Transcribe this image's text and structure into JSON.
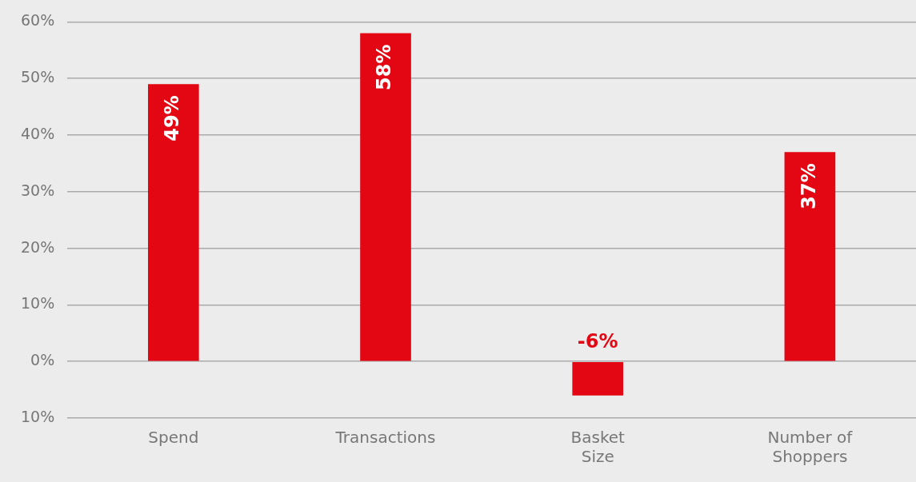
{
  "chart_data": {
    "type": "bar",
    "categories": [
      "Spend",
      "Transactions",
      "Basket Size",
      "Number of Shoppers"
    ],
    "values": [
      49,
      58,
      -6,
      37
    ],
    "color": "#e30613",
    "value_labels": [
      "49%",
      "58%",
      "-6%",
      "37%"
    ],
    "ylim": [
      -10,
      60
    ],
    "yticks": [
      {
        "value": -10,
        "label": "10%"
      },
      {
        "value": 0,
        "label": "0%"
      },
      {
        "value": 10,
        "label": "10%"
      },
      {
        "value": 20,
        "label": "20%"
      },
      {
        "value": 30,
        "label": "30%"
      },
      {
        "value": 40,
        "label": "40%"
      },
      {
        "value": 50,
        "label": "50%"
      },
      {
        "value": 60,
        "label": "60%"
      }
    ],
    "grid": "y",
    "legend": false
  }
}
